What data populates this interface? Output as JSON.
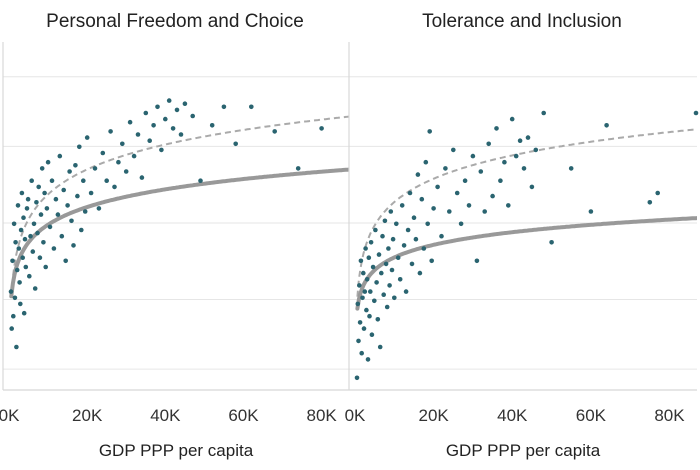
{
  "chart_data": [
    {
      "type": "scatter",
      "title": "Personal Freedom and Choice",
      "xlabel": "GDP PPP per capita",
      "xlim": [
        0,
        87000
      ],
      "ylim": [
        0,
        1
      ],
      "x_ticks": [
        "0K",
        "20K",
        "40K",
        "60K",
        "80K"
      ],
      "x_tick_values": [
        0,
        20000,
        40000,
        60000,
        80000
      ],
      "grid": true,
      "point_color": "#2a6470",
      "trend_solid": {
        "style": "solid log fit",
        "color": "#999999",
        "a": 0.46,
        "b": 0.112
      },
      "trend_dashed": {
        "style": "dashed log fit",
        "color": "#aaaaaa",
        "a": 0.535,
        "b": 0.158
      },
      "points": [
        [
          500,
          0.3
        ],
        [
          700,
          0.18
        ],
        [
          900,
          0.4
        ],
        [
          1100,
          0.22
        ],
        [
          1300,
          0.52
        ],
        [
          1500,
          0.28
        ],
        [
          1700,
          0.46
        ],
        [
          1900,
          0.12
        ],
        [
          2100,
          0.37
        ],
        [
          2300,
          0.58
        ],
        [
          2500,
          0.44
        ],
        [
          2700,
          0.33
        ],
        [
          2900,
          0.26
        ],
        [
          3100,
          0.5
        ],
        [
          3300,
          0.62
        ],
        [
          3500,
          0.41
        ],
        [
          3700,
          0.54
        ],
        [
          3900,
          0.23
        ],
        [
          4100,
          0.47
        ],
        [
          4300,
          0.38
        ],
        [
          4600,
          0.57
        ],
        [
          4900,
          0.6
        ],
        [
          5200,
          0.35
        ],
        [
          5500,
          0.48
        ],
        [
          5800,
          0.66
        ],
        [
          6100,
          0.43
        ],
        [
          6400,
          0.52
        ],
        [
          6700,
          0.31
        ],
        [
          7000,
          0.59
        ],
        [
          7300,
          0.49
        ],
        [
          7600,
          0.64
        ],
        [
          7900,
          0.41
        ],
        [
          8200,
          0.55
        ],
        [
          8500,
          0.7
        ],
        [
          8800,
          0.46
        ],
        [
          9100,
          0.62
        ],
        [
          9400,
          0.38
        ],
        [
          9700,
          0.57
        ],
        [
          10000,
          0.72
        ],
        [
          10500,
          0.51
        ],
        [
          11000,
          0.66
        ],
        [
          11500,
          0.44
        ],
        [
          12000,
          0.6
        ],
        [
          12500,
          0.55
        ],
        [
          13000,
          0.74
        ],
        [
          13500,
          0.48
        ],
        [
          14000,
          0.63
        ],
        [
          14500,
          0.4
        ],
        [
          15000,
          0.58
        ],
        [
          15500,
          0.69
        ],
        [
          16000,
          0.53
        ],
        [
          16500,
          0.45
        ],
        [
          17000,
          0.71
        ],
        [
          17500,
          0.61
        ],
        [
          18000,
          0.77
        ],
        [
          18500,
          0.5
        ],
        [
          19000,
          0.66
        ],
        [
          19500,
          0.56
        ],
        [
          20000,
          0.8
        ],
        [
          21000,
          0.62
        ],
        [
          22000,
          0.7
        ],
        [
          23000,
          0.57
        ],
        [
          24000,
          0.75
        ],
        [
          25000,
          0.66
        ],
        [
          26000,
          0.82
        ],
        [
          27000,
          0.64
        ],
        [
          28000,
          0.72
        ],
        [
          29000,
          0.78
        ],
        [
          30000,
          0.69
        ],
        [
          31000,
          0.85
        ],
        [
          32000,
          0.74
        ],
        [
          33000,
          0.81
        ],
        [
          34000,
          0.67
        ],
        [
          35000,
          0.88
        ],
        [
          36000,
          0.79
        ],
        [
          37000,
          0.84
        ],
        [
          38000,
          0.9
        ],
        [
          39000,
          0.76
        ],
        [
          40000,
          0.86
        ],
        [
          41000,
          0.92
        ],
        [
          42000,
          0.83
        ],
        [
          43000,
          0.89
        ],
        [
          44000,
          0.81
        ],
        [
          45000,
          0.91
        ],
        [
          47000,
          0.87
        ],
        [
          49000,
          0.66
        ],
        [
          52000,
          0.84
        ],
        [
          55000,
          0.9
        ],
        [
          58000,
          0.78
        ],
        [
          62000,
          0.9
        ],
        [
          68000,
          0.82
        ],
        [
          74000,
          0.7
        ],
        [
          80000,
          0.83
        ]
      ]
    },
    {
      "type": "scatter",
      "title": "Tolerance and Inclusion",
      "xlabel": "GDP PPP per capita",
      "xlim": [
        0,
        87000
      ],
      "ylim": [
        0,
        1
      ],
      "x_ticks": [
        "0K",
        "20K",
        "40K",
        "60K",
        "80K"
      ],
      "x_tick_values": [
        0,
        20000,
        40000,
        60000,
        80000
      ],
      "grid": true,
      "point_color": "#2a6470",
      "trend_solid": {
        "style": "solid log fit",
        "color": "#999999",
        "a": 0.37,
        "b": 0.08
      },
      "trend_dashed": {
        "style": "dashed log fit",
        "color": "#aaaaaa",
        "a": 0.515,
        "b": 0.148
      },
      "points": [
        [
          500,
          0.02
        ],
        [
          700,
          0.26
        ],
        [
          900,
          0.14
        ],
        [
          1100,
          0.32
        ],
        [
          1300,
          0.2
        ],
        [
          1500,
          0.4
        ],
        [
          1700,
          0.1
        ],
        [
          1900,
          0.28
        ],
        [
          2100,
          0.36
        ],
        [
          2300,
          0.18
        ],
        [
          2500,
          0.3
        ],
        [
          2700,
          0.44
        ],
        [
          2900,
          0.24
        ],
        [
          3100,
          0.34
        ],
        [
          3300,
          0.08
        ],
        [
          3500,
          0.41
        ],
        [
          3700,
          0.22
        ],
        [
          3900,
          0.3
        ],
        [
          4100,
          0.46
        ],
        [
          4300,
          0.16
        ],
        [
          4600,
          0.38
        ],
        [
          4900,
          0.27
        ],
        [
          5200,
          0.5
        ],
        [
          5500,
          0.33
        ],
        [
          5800,
          0.21
        ],
        [
          6100,
          0.42
        ],
        [
          6400,
          0.12
        ],
        [
          6700,
          0.36
        ],
        [
          7000,
          0.48
        ],
        [
          7300,
          0.29
        ],
        [
          7600,
          0.53
        ],
        [
          7900,
          0.39
        ],
        [
          8200,
          0.25
        ],
        [
          8500,
          0.44
        ],
        [
          8800,
          0.32
        ],
        [
          9100,
          0.56
        ],
        [
          9400,
          0.37
        ],
        [
          9700,
          0.47
        ],
        [
          10000,
          0.28
        ],
        [
          10500,
          0.52
        ],
        [
          11000,
          0.41
        ],
        [
          11500,
          0.34
        ],
        [
          12000,
          0.58
        ],
        [
          12500,
          0.45
        ],
        [
          13000,
          0.3
        ],
        [
          13500,
          0.5
        ],
        [
          14000,
          0.62
        ],
        [
          14500,
          0.39
        ],
        [
          15000,
          0.54
        ],
        [
          15500,
          0.47
        ],
        [
          16000,
          0.68
        ],
        [
          16500,
          0.36
        ],
        [
          17000,
          0.6
        ],
        [
          17500,
          0.44
        ],
        [
          18000,
          0.72
        ],
        [
          18500,
          0.52
        ],
        [
          19000,
          0.82
        ],
        [
          19500,
          0.4
        ],
        [
          20000,
          0.57
        ],
        [
          21000,
          0.64
        ],
        [
          22000,
          0.48
        ],
        [
          23000,
          0.7
        ],
        [
          24000,
          0.56
        ],
        [
          25000,
          0.76
        ],
        [
          26000,
          0.62
        ],
        [
          27000,
          0.52
        ],
        [
          28000,
          0.66
        ],
        [
          29000,
          0.58
        ],
        [
          30000,
          0.74
        ],
        [
          31000,
          0.4
        ],
        [
          32000,
          0.69
        ],
        [
          33000,
          0.56
        ],
        [
          34000,
          0.78
        ],
        [
          35000,
          0.61
        ],
        [
          36000,
          0.83
        ],
        [
          37000,
          0.66
        ],
        [
          38000,
          0.72
        ],
        [
          39000,
          0.58
        ],
        [
          40000,
          0.86
        ],
        [
          41000,
          0.74
        ],
        [
          42000,
          0.79
        ],
        [
          43000,
          0.7
        ],
        [
          44000,
          0.8
        ],
        [
          45000,
          0.64
        ],
        [
          46000,
          0.76
        ],
        [
          48000,
          0.88
        ],
        [
          50000,
          0.46
        ],
        [
          55000,
          0.7
        ],
        [
          60000,
          0.56
        ],
        [
          64000,
          0.84
        ],
        [
          75000,
          0.59
        ],
        [
          77000,
          0.62
        ],
        [
          90000,
          0.88
        ]
      ]
    }
  ]
}
